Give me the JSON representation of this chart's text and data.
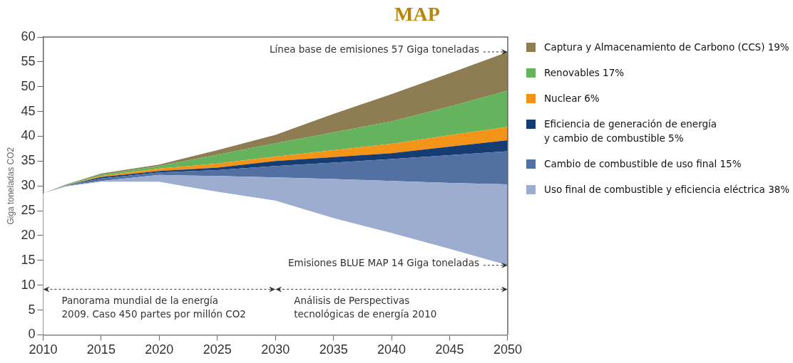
{
  "chart_data": {
    "type": "area",
    "title": "MAP",
    "ylabel": "Giga toneladas CO2",
    "stacked": true,
    "x": [
      2010,
      2012,
      2015,
      2020,
      2025,
      2030,
      2035,
      2040,
      2045,
      2050
    ],
    "series": [
      {
        "color": "#ffffff",
        "values": [
          28.5,
          29.9,
          30.8,
          30.8,
          28.8,
          27.0,
          23.5,
          20.5,
          17.3,
          14.0
        ]
      },
      {
        "name": "Uso final de combustible y eficiencia eléctrica 38%",
        "color": "#9cadcf",
        "values": [
          0,
          0.1,
          0.2,
          1.4,
          3.2,
          4.7,
          7.9,
          10.5,
          13.3,
          16.3
        ]
      },
      {
        "name": "Cambio de combustible de uso final   15%",
        "color": "#5270a2",
        "values": [
          0,
          0.1,
          0.5,
          0.5,
          1.2,
          2.3,
          3.3,
          4.4,
          5.6,
          6.7
        ]
      },
      {
        "name": "Eficiencia de generación de energía\ny cambio de combustible 5%",
        "color": "#163d73",
        "values": [
          0,
          0,
          0.3,
          0.3,
          0.5,
          1.0,
          1.1,
          1.2,
          1.7,
          2.2
        ]
      },
      {
        "name": "Nuclear 6%",
        "color": "#f39419",
        "values": [
          0,
          0,
          0.2,
          0.5,
          0.8,
          0.9,
          1.4,
          1.9,
          2.3,
          2.7
        ]
      },
      {
        "name": "Renovables 17%",
        "color": "#66b35d",
        "values": [
          0,
          0.1,
          0.3,
          0.5,
          1.8,
          2.7,
          3.6,
          4.5,
          5.8,
          7.3
        ]
      },
      {
        "name": "Captura y Almacenamiento de Carbono (CCS) 19%",
        "color": "#8e7c53",
        "values": [
          0,
          0.1,
          0.2,
          0.3,
          0.9,
          1.7,
          3.7,
          5.5,
          6.7,
          7.8
        ]
      }
    ],
    "xlim": [
      2010,
      2050
    ],
    "xticks": [
      2010,
      2015,
      2020,
      2025,
      2030,
      2035,
      2040,
      2045,
      2050
    ],
    "ylim": [
      0,
      60
    ],
    "yticks": [
      0,
      5,
      10,
      15,
      20,
      25,
      30,
      35,
      40,
      45,
      50,
      55,
      60
    ],
    "grid": false,
    "legend": "right",
    "annotations": [
      {
        "text": "Línea base de emisiones 57 Giga toneladas",
        "x": 2050,
        "y": 57
      },
      {
        "text": "Emisiones BLUE MAP 14 Giga toneladas",
        "x": 2050,
        "y": 14
      },
      "Panorama mundial de la energía\n2009. Caso 450 partes por millón CO2",
      "Análisis de Perspectivas\ntecnológicas de energía 2010"
    ]
  }
}
